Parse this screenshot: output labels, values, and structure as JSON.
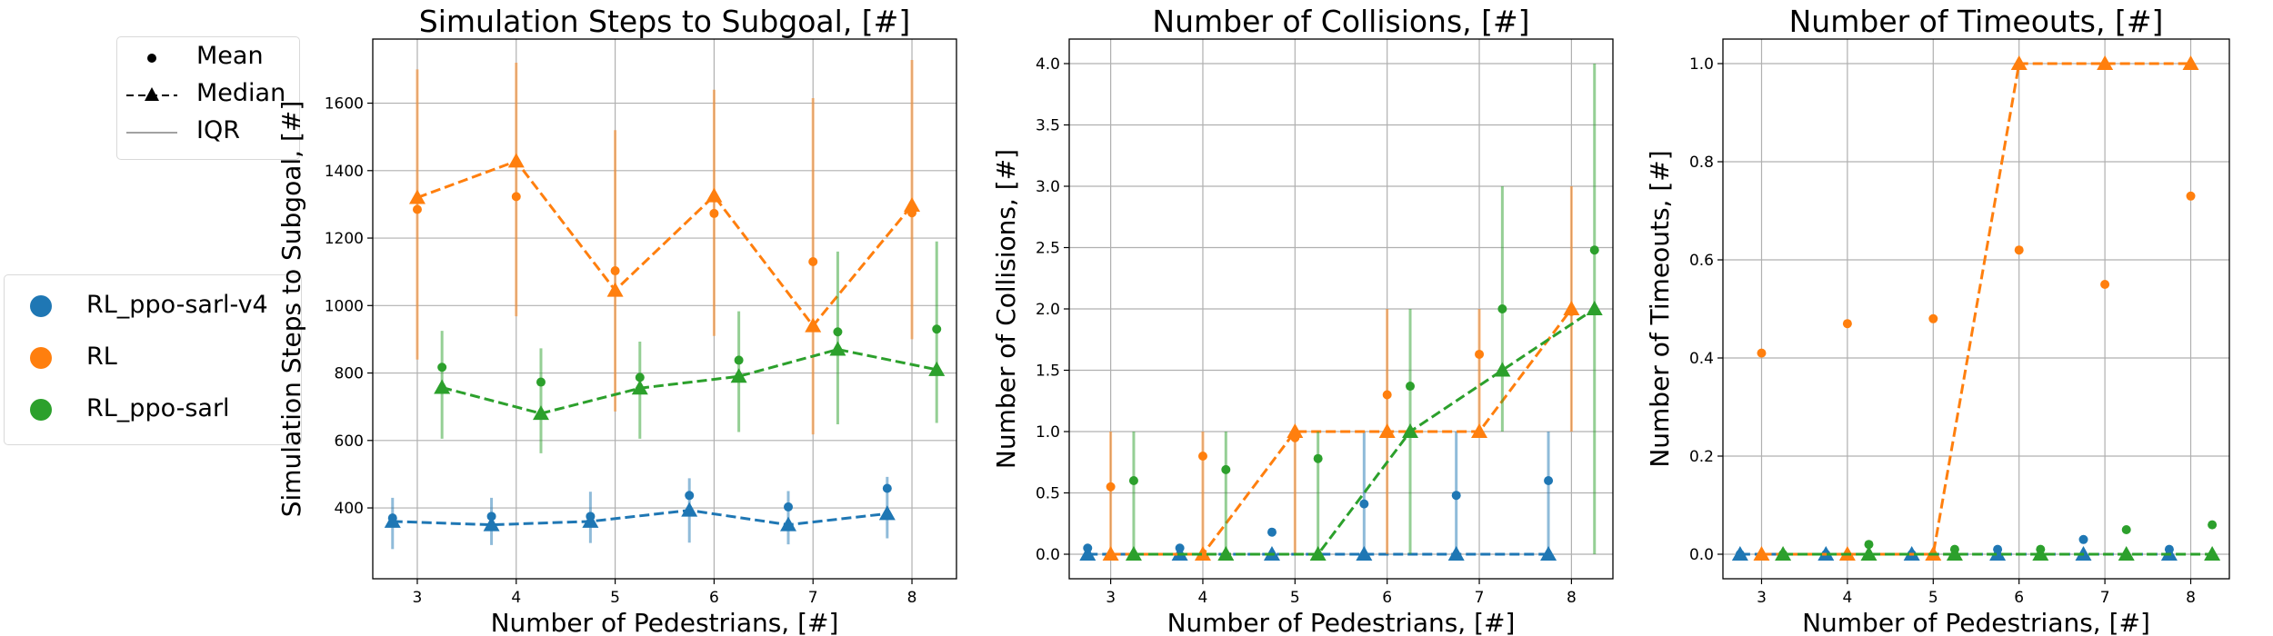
{
  "colors": {
    "RL_ppo-sarl-v4": "#1f77b4",
    "RL": "#ff7f0e",
    "RL_ppo-sarl": "#2ca02c"
  },
  "legend_style": {
    "mean_label": "Mean",
    "median_label": "Median",
    "iqr_label": "IQR"
  },
  "legend_methods": [
    "RL_ppo-sarl-v4",
    "RL",
    "RL_ppo-sarl"
  ],
  "chart_data": [
    {
      "type": "line",
      "title": "Simulation Steps to Subgoal, [#]",
      "xlabel": "Number of Pedestrians, [#]",
      "ylabel": "Simulation Steps to Subgoal, [#]",
      "xlim": [
        2.55,
        8.45
      ],
      "ylim": [
        190,
        1790
      ],
      "xticks": [
        3,
        4,
        5,
        6,
        7,
        8
      ],
      "yticks": [
        400,
        600,
        800,
        1000,
        1200,
        1400,
        1600
      ],
      "ytick_labels": [
        "400",
        "600",
        "800",
        "1000",
        "1200",
        "1400",
        "1600"
      ],
      "grid": true,
      "series": [
        {
          "name": "RL_ppo-sarl-v4",
          "x": [
            2.75,
            3.75,
            4.75,
            5.75,
            6.75,
            7.75
          ],
          "median": [
            360,
            350,
            360,
            393,
            350,
            383
          ],
          "mean": [
            370,
            375,
            375,
            437,
            403,
            458
          ],
          "iqr_low": [
            278,
            290,
            296,
            297,
            292,
            310
          ],
          "iqr_high": [
            430,
            430,
            448,
            488,
            450,
            492
          ]
        },
        {
          "name": "RL",
          "x": [
            3.0,
            4.0,
            5.0,
            6.0,
            7.0,
            8.0
          ],
          "median": [
            1320,
            1428,
            1045,
            1325,
            940,
            1297
          ],
          "mean": [
            1285,
            1323,
            1103,
            1273,
            1130,
            1275
          ],
          "iqr_low": [
            840,
            968,
            686,
            910,
            618,
            900
          ],
          "iqr_high": [
            1700,
            1720,
            1520,
            1640,
            1615,
            1728
          ]
        },
        {
          "name": "RL_ppo-sarl",
          "x": [
            3.25,
            4.25,
            5.25,
            6.25,
            7.25,
            8.25
          ],
          "median": [
            757,
            680,
            755,
            790,
            870,
            810
          ],
          "mean": [
            817,
            773,
            787,
            838,
            922,
            930
          ],
          "iqr_low": [
            605,
            562,
            605,
            625,
            648,
            652
          ],
          "iqr_high": [
            925,
            873,
            893,
            983,
            1160,
            1190
          ]
        }
      ]
    },
    {
      "type": "line",
      "title": "Number of Collisions, [#]",
      "xlabel": "Number of Pedestrians, [#]",
      "ylabel": "Number of Collisions, [#]",
      "xlim": [
        2.55,
        8.45
      ],
      "ylim": [
        -0.2,
        4.2
      ],
      "xticks": [
        3,
        4,
        5,
        6,
        7,
        8
      ],
      "yticks": [
        0,
        0.5,
        1,
        1.5,
        2,
        2.5,
        3,
        3.5,
        4
      ],
      "ytick_labels": [
        "0.0",
        "0.5",
        "1.0",
        "1.5",
        "2.0",
        "2.5",
        "3.0",
        "3.5",
        "4.0"
      ],
      "grid": true,
      "series": [
        {
          "name": "RL_ppo-sarl-v4",
          "x": [
            2.75,
            3.75,
            4.75,
            5.75,
            6.75,
            7.75
          ],
          "median": [
            0,
            0,
            0,
            0,
            0,
            0
          ],
          "mean": [
            0.05,
            0.05,
            0.18,
            0.41,
            0.48,
            0.6
          ],
          "iqr_low": [
            0,
            0,
            0,
            0,
            0,
            0
          ],
          "iqr_high": [
            0,
            0,
            0,
            1,
            1,
            1
          ]
        },
        {
          "name": "RL",
          "x": [
            3.0,
            4.0,
            5.0,
            6.0,
            7.0,
            8.0
          ],
          "median": [
            0,
            0,
            1,
            1,
            1,
            2
          ],
          "mean": [
            0.55,
            0.8,
            0.95,
            1.3,
            1.63,
            1.98
          ],
          "iqr_low": [
            0,
            0,
            0,
            0,
            1,
            1
          ],
          "iqr_high": [
            1,
            1,
            1,
            2,
            2,
            3
          ]
        },
        {
          "name": "RL_ppo-sarl",
          "x": [
            3.25,
            4.25,
            5.25,
            6.25,
            7.25,
            8.25
          ],
          "median": [
            0,
            0,
            0,
            1,
            1.5,
            2
          ],
          "mean": [
            0.6,
            0.69,
            0.78,
            1.37,
            2.0,
            2.48
          ],
          "iqr_low": [
            0,
            0,
            0,
            0,
            1,
            0
          ],
          "iqr_high": [
            1,
            1,
            1,
            2,
            3,
            4
          ]
        }
      ]
    },
    {
      "type": "line",
      "title": "Number of Timeouts, [#]",
      "xlabel": "Number of Pedestrians, [#]",
      "ylabel": "Number of Timeouts, [#]",
      "xlim": [
        2.55,
        8.45
      ],
      "ylim": [
        -0.05,
        1.05
      ],
      "xticks": [
        3,
        4,
        5,
        6,
        7,
        8
      ],
      "yticks": [
        0,
        0.2,
        0.4,
        0.6,
        0.8,
        1.0
      ],
      "ytick_labels": [
        "0.0",
        "0.2",
        "0.4",
        "0.6",
        "0.8",
        "1.0"
      ],
      "grid": true,
      "series": [
        {
          "name": "RL_ppo-sarl-v4",
          "x": [
            2.75,
            3.75,
            4.75,
            5.75,
            6.75,
            7.75
          ],
          "median": [
            0,
            0,
            0,
            0,
            0,
            0
          ],
          "mean": [
            0.0,
            0.0,
            0.0,
            0.01,
            0.03,
            0.01
          ],
          "iqr_low": [
            0,
            0,
            0,
            0,
            0,
            0
          ],
          "iqr_high": [
            0,
            0,
            0,
            0,
            0,
            0
          ]
        },
        {
          "name": "RL",
          "x": [
            3.0,
            4.0,
            5.0,
            6.0,
            7.0,
            8.0
          ],
          "median": [
            0,
            0,
            0,
            1,
            1,
            1
          ],
          "mean": [
            0.41,
            0.47,
            0.48,
            0.62,
            0.55,
            0.73
          ],
          "iqr_low": [
            0,
            0,
            0,
            1,
            1,
            1
          ],
          "iqr_high": [
            0,
            0,
            0,
            1,
            1,
            1
          ]
        },
        {
          "name": "RL_ppo-sarl",
          "x": [
            3.25,
            4.25,
            5.25,
            6.25,
            7.25,
            8.25
          ],
          "median": [
            0,
            0,
            0,
            0,
            0,
            0
          ],
          "mean": [
            0.0,
            0.02,
            0.01,
            0.01,
            0.05,
            0.06
          ],
          "iqr_low": [
            0,
            0,
            0,
            0,
            0,
            0
          ],
          "iqr_high": [
            0,
            0,
            0,
            0,
            0,
            0
          ]
        }
      ]
    }
  ]
}
